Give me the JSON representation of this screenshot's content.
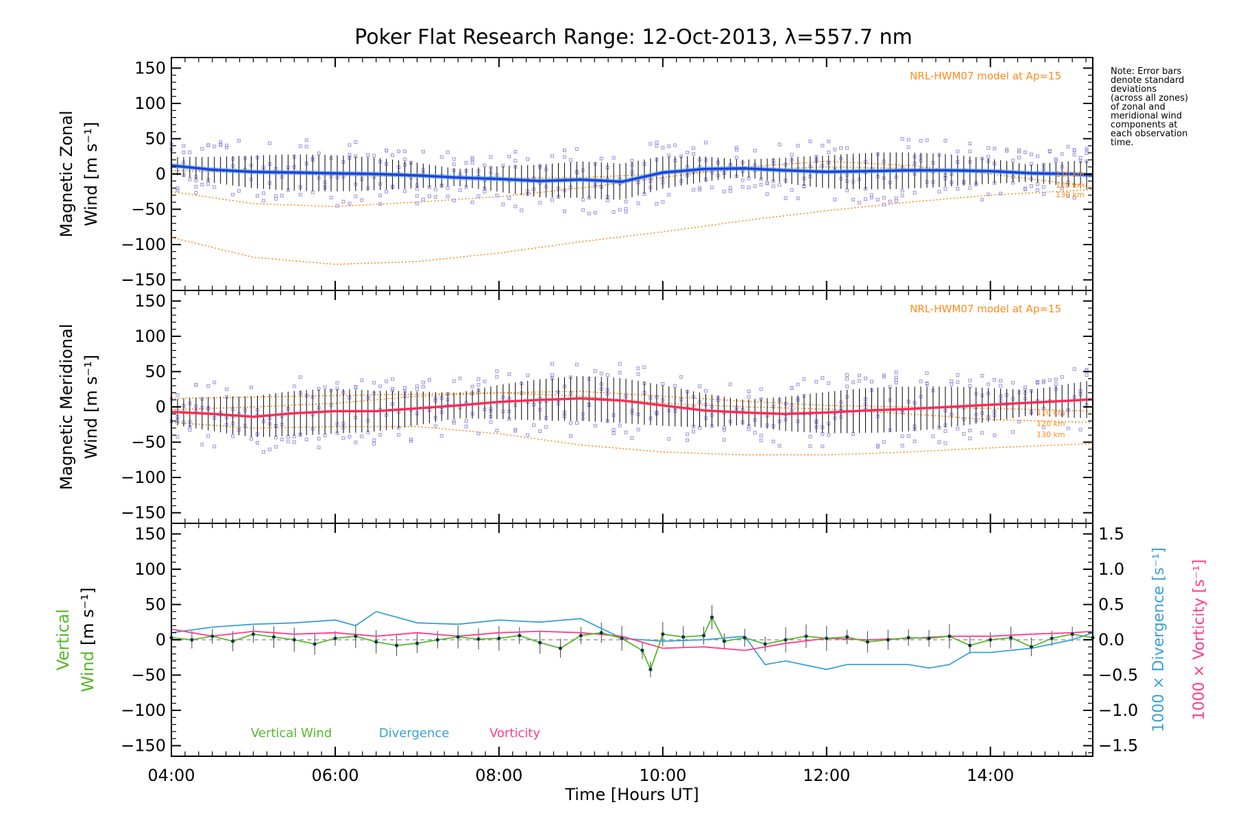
{
  "title": "Poker Flat Research Range: 12-Oct-2013, λ=557.7 nm",
  "note": [
    "Note: Error bars",
    "denote standard",
    "deviations",
    "(across all zones)",
    "of zonal and",
    "meridional wind",
    "components at",
    "each observation",
    "time."
  ],
  "colors": {
    "zonal": "#1f3fe0",
    "zonal_light": "#49a8e6",
    "meridional": "#ff2a55",
    "model": "#ff8a1a",
    "vertical": "#55b82a",
    "divergence": "#3aa0d6",
    "vorticity": "#ff3c8a",
    "scatter": "#9a8fe0",
    "errbar": "#000000"
  },
  "chart_data": [
    {
      "type": "line",
      "panel": "zonal",
      "ylabel_lines": [
        "Magnetic Zonal",
        "Wind [m s⁻¹]"
      ],
      "model_label": "NRL-HWM07 model at Ap=15",
      "altitude_labels": [
        "110 km",
        "120 km",
        "130 km"
      ],
      "xlim": [
        4.0,
        15.25
      ],
      "ylim": [
        -165,
        165
      ],
      "yticks": [
        150,
        100,
        50,
        0,
        -50,
        -100,
        -150
      ],
      "yticklabels": [
        "150",
        "100",
        "50",
        "0",
        "−50",
        "−100",
        "−150"
      ],
      "series": [
        {
          "name": "Magnetic Zonal Wind (mean)",
          "x": [
            4.0,
            4.5,
            5.0,
            5.5,
            6.0,
            6.5,
            7.0,
            7.5,
            8.0,
            8.5,
            9.0,
            9.5,
            10.0,
            10.5,
            11.0,
            11.5,
            12.0,
            12.5,
            13.0,
            13.5,
            14.0,
            14.5,
            15.0,
            15.25
          ],
          "y": [
            12,
            6,
            3,
            2,
            1,
            0,
            -2,
            -5,
            -7,
            -10,
            -8,
            -11,
            2,
            7,
            8,
            5,
            3,
            4,
            5,
            5,
            4,
            1,
            0,
            -2
          ]
        },
        {
          "name": "HWM07 110 km",
          "x": [
            4,
            5,
            6,
            7,
            8,
            9,
            10,
            11,
            12,
            13,
            14,
            15.25
          ],
          "y": [
            5,
            2,
            -2,
            -4,
            -6,
            -5,
            0,
            6,
            10,
            8,
            5,
            0
          ]
        },
        {
          "name": "HWM07 120 km",
          "x": [
            4,
            5,
            6,
            7,
            8,
            9,
            10,
            11,
            12,
            13,
            14,
            15.25
          ],
          "y": [
            -25,
            -42,
            -46,
            -40,
            -32,
            -20,
            -5,
            10,
            18,
            12,
            0,
            -18
          ]
        },
        {
          "name": "HWM07 130 km",
          "x": [
            4,
            5,
            6,
            7,
            8,
            9,
            10,
            11,
            12,
            13,
            14,
            15.25
          ],
          "y": [
            -90,
            -118,
            -128,
            -124,
            -112,
            -96,
            -82,
            -66,
            -52,
            -40,
            -30,
            -22
          ]
        }
      ]
    },
    {
      "type": "line",
      "panel": "meridional",
      "ylabel_lines": [
        "Magnetic Meridional",
        "Wind [m s⁻¹]"
      ],
      "model_label": "NRL-HWM07 model at Ap=15",
      "altitude_labels": [
        "110 km",
        "120 km",
        "130 km"
      ],
      "xlim": [
        4.0,
        15.25
      ],
      "ylim": [
        -165,
        165
      ],
      "yticks": [
        150,
        100,
        50,
        0,
        -50,
        -100,
        -150
      ],
      "yticklabels": [
        "150",
        "100",
        "50",
        "0",
        "−50",
        "−100",
        "−150"
      ],
      "series": [
        {
          "name": "Magnetic Meridional Wind (mean)",
          "x": [
            4.0,
            4.5,
            5.0,
            5.5,
            6.0,
            6.5,
            7.0,
            7.5,
            8.0,
            8.5,
            9.0,
            9.5,
            10.0,
            10.5,
            11.0,
            11.5,
            12.0,
            12.5,
            13.0,
            13.5,
            14.0,
            14.5,
            15.0,
            15.25
          ],
          "y": [
            -7,
            -10,
            -14,
            -9,
            -6,
            -6,
            -2,
            2,
            7,
            10,
            12,
            9,
            2,
            -5,
            -8,
            -10,
            -8,
            -5,
            -3,
            0,
            3,
            6,
            9,
            11
          ]
        },
        {
          "name": "HWM07 110 km",
          "x": [
            4,
            5,
            6,
            7,
            8,
            9,
            10,
            11,
            12,
            13,
            14,
            15.25
          ],
          "y": [
            12,
            14,
            16,
            18,
            20,
            22,
            15,
            8,
            2,
            0,
            -2,
            -6
          ]
        },
        {
          "name": "HWM07 120 km",
          "x": [
            4,
            5,
            6,
            7,
            8,
            9,
            10,
            11,
            12,
            13,
            14,
            15.25
          ],
          "y": [
            -4,
            0,
            5,
            15,
            20,
            15,
            5,
            0,
            -3,
            -10,
            -18,
            -22
          ]
        },
        {
          "name": "HWM07 130 km",
          "x": [
            4,
            5,
            6,
            7,
            8,
            9,
            10,
            11,
            12,
            13,
            14,
            15.25
          ],
          "y": [
            -22,
            -30,
            -28,
            -28,
            -38,
            -54,
            -64,
            -68,
            -68,
            -64,
            -58,
            -52
          ]
        }
      ]
    },
    {
      "type": "line",
      "panel": "vertical",
      "ylabel_parts": [
        "Vertical",
        "Wind",
        "[m s⁻¹]"
      ],
      "right_label_1": "1000 × Divergence [s⁻¹]",
      "right_label_2": "1000 × Vorticity [s⁻¹]",
      "xlim": [
        4.0,
        15.25
      ],
      "ylim": [
        -165,
        165
      ],
      "yticks": [
        150,
        100,
        50,
        0,
        -50,
        -100,
        -150
      ],
      "yticklabels": [
        "150",
        "100",
        "50",
        "0",
        "−50",
        "−100",
        "−150"
      ],
      "y2lim": [
        -1.65,
        1.65
      ],
      "y2ticks": [
        1.5,
        1.0,
        0.5,
        0.0,
        -0.5,
        -1.0,
        -1.5
      ],
      "y2ticklabels": [
        "1.5",
        "1.0",
        "0.5",
        "0.0",
        "−0.5",
        "−1.0",
        "−1.5"
      ],
      "legend": [
        "Vertical Wind",
        "Divergence",
        "Vorticity"
      ],
      "series": [
        {
          "name": "Vertical Wind",
          "x": [
            4.0,
            4.25,
            4.5,
            4.75,
            5.0,
            5.25,
            5.5,
            5.75,
            6.0,
            6.25,
            6.5,
            6.75,
            7.0,
            7.25,
            7.5,
            7.75,
            8.0,
            8.25,
            8.5,
            8.75,
            9.0,
            9.25,
            9.5,
            9.75,
            9.85,
            10.0,
            10.25,
            10.5,
            10.6,
            10.75,
            11.0,
            11.25,
            11.5,
            11.75,
            12.0,
            12.25,
            12.5,
            12.75,
            13.0,
            13.25,
            13.5,
            13.75,
            14.0,
            14.25,
            14.5,
            14.75,
            15.0,
            15.25
          ],
          "y": [
            3,
            0,
            5,
            -2,
            8,
            4,
            0,
            -6,
            2,
            5,
            -3,
            -8,
            -5,
            0,
            4,
            1,
            2,
            6,
            -4,
            -12,
            6,
            10,
            2,
            -15,
            -42,
            8,
            4,
            6,
            32,
            -2,
            3,
            -6,
            0,
            5,
            2,
            4,
            -3,
            0,
            3,
            2,
            5,
            -8,
            0,
            3,
            -10,
            2,
            8,
            3
          ]
        },
        {
          "name": "1000 × Divergence",
          "x": [
            4.0,
            4.5,
            5.0,
            5.5,
            6.0,
            6.25,
            6.5,
            6.75,
            7.0,
            7.5,
            8.0,
            8.5,
            9.0,
            9.5,
            10.0,
            10.5,
            11.0,
            11.25,
            11.5,
            12.0,
            12.25,
            12.5,
            13.0,
            13.25,
            13.5,
            13.75,
            14.0,
            14.5,
            15.0,
            15.25
          ],
          "y": [
            0.1,
            0.18,
            0.22,
            0.24,
            0.28,
            0.2,
            0.4,
            0.32,
            0.24,
            0.22,
            0.28,
            0.25,
            0.3,
            0.02,
            -0.02,
            0.0,
            0.05,
            -0.35,
            -0.3,
            -0.42,
            -0.35,
            -0.35,
            -0.35,
            -0.4,
            -0.35,
            -0.18,
            -0.18,
            -0.12,
            0.0,
            0.1
          ]
        },
        {
          "name": "1000 × Vorticity",
          "x": [
            4.0,
            4.5,
            5.0,
            5.5,
            6.0,
            6.5,
            7.0,
            7.5,
            8.0,
            8.5,
            9.0,
            9.5,
            10.0,
            10.5,
            11.0,
            11.5,
            12.0,
            12.5,
            13.0,
            13.5,
            14.0,
            14.5,
            15.0,
            15.25
          ],
          "y": [
            0.15,
            0.05,
            0.12,
            0.08,
            0.1,
            0.05,
            0.1,
            0.05,
            0.1,
            0.12,
            0.1,
            0.05,
            -0.12,
            -0.1,
            -0.15,
            -0.05,
            0.02,
            0.0,
            0.02,
            0.05,
            0.05,
            0.08,
            0.1,
            0.12
          ]
        }
      ]
    }
  ],
  "x_axis": {
    "label": "Time [Hours UT]",
    "ticks": [
      4,
      6,
      8,
      10,
      12,
      14
    ],
    "ticklabels": [
      "04:00",
      "06:00",
      "08:00",
      "10:00",
      "12:00",
      "14:00"
    ]
  }
}
